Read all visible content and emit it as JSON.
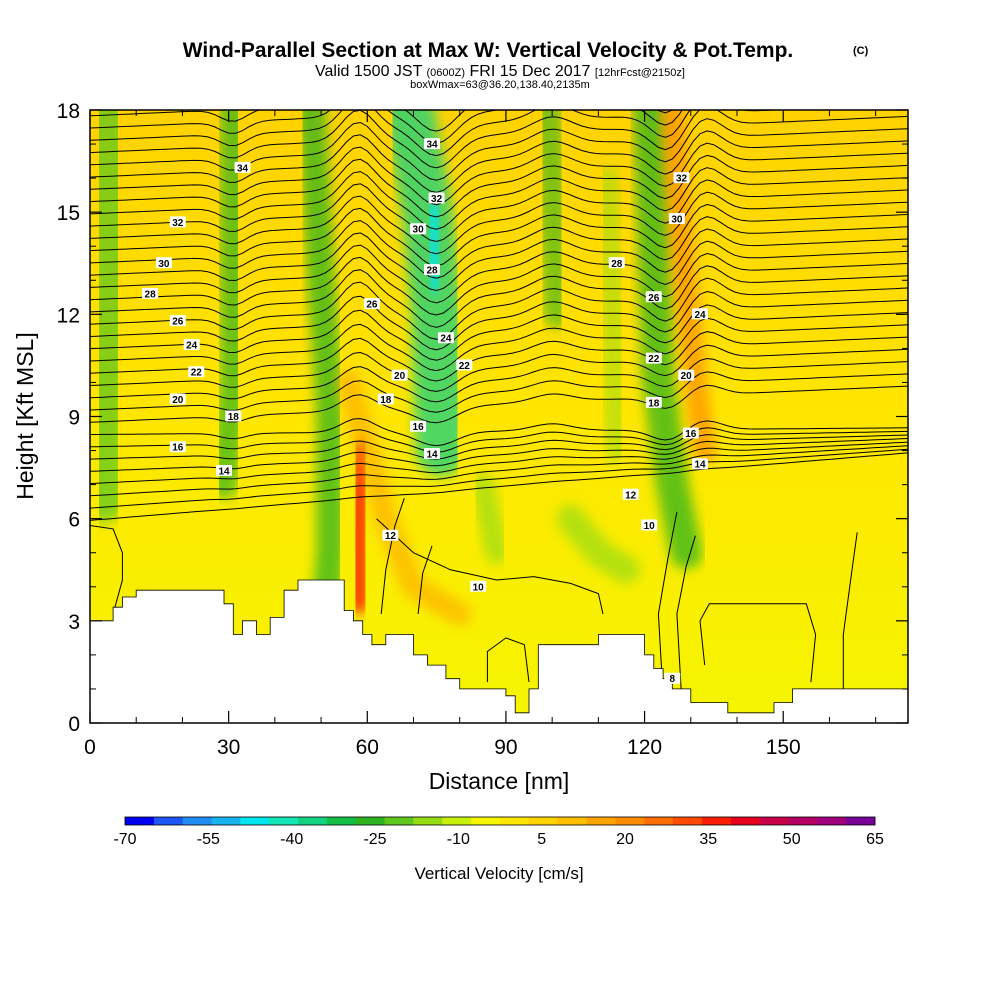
{
  "title": {
    "main": "Wind-Parallel Section at Max W: Vertical Velocity & Pot.Temp.",
    "copyright": "(C)",
    "valid_prefix": "Valid 1500 JST",
    "valid_utc": "(0600Z)",
    "valid_date": "FRI 15 Dec 2017",
    "forecast": "[12hrFcst@2150z]",
    "box_info": "boxWmax=63@36.20,138.40,2135m"
  },
  "chart_data": {
    "type": "heatmap",
    "xlabel": "Distance [nm]",
    "ylabel": "Height [Kft MSL]",
    "xlim": [
      0,
      177
    ],
    "ylim": [
      0,
      18
    ],
    "x_ticks": [
      0,
      30,
      60,
      90,
      120,
      150
    ],
    "y_ticks": [
      0,
      3,
      6,
      9,
      12,
      15,
      18
    ],
    "colorbar": {
      "title": "Vertical Velocity [cm/s]",
      "tick_labels": [
        "-70",
        "-55",
        "-40",
        "-25",
        "-10",
        "5",
        "20",
        "35",
        "50",
        "65"
      ],
      "range": [
        -70,
        65
      ],
      "colors": [
        "#0000f0",
        "#1e55f5",
        "#1e8cf0",
        "#17b4f0",
        "#00e6f0",
        "#13e6b4",
        "#13d282",
        "#13be46",
        "#2db41e",
        "#5fc81e",
        "#96dc14",
        "#c8f00a",
        "#f5f500",
        "#ffe600",
        "#ffd200",
        "#ffbe00",
        "#ffa500",
        "#ff8c00",
        "#ff6e00",
        "#ff4b00",
        "#fa1e00",
        "#e6001e",
        "#c80046",
        "#b40064",
        "#a0007d",
        "#780096"
      ]
    },
    "theta_contour_labels": [
      {
        "x": 33,
        "y": 16.3,
        "label": "34"
      },
      {
        "x": 74,
        "y": 17.0,
        "label": "34"
      },
      {
        "x": 128,
        "y": 16.0,
        "label": "32"
      },
      {
        "x": 19,
        "y": 14.7,
        "label": "32"
      },
      {
        "x": 75,
        "y": 15.4,
        "label": "32"
      },
      {
        "x": 127,
        "y": 14.8,
        "label": "30"
      },
      {
        "x": 16,
        "y": 13.5,
        "label": "30"
      },
      {
        "x": 71,
        "y": 14.5,
        "label": "30"
      },
      {
        "x": 13,
        "y": 12.6,
        "label": "28"
      },
      {
        "x": 74,
        "y": 13.3,
        "label": "28"
      },
      {
        "x": 114,
        "y": 13.5,
        "label": "28"
      },
      {
        "x": 19,
        "y": 11.8,
        "label": "26"
      },
      {
        "x": 61,
        "y": 12.3,
        "label": "26"
      },
      {
        "x": 122,
        "y": 12.5,
        "label": "26"
      },
      {
        "x": 22,
        "y": 11.1,
        "label": "24"
      },
      {
        "x": 77,
        "y": 11.3,
        "label": "24"
      },
      {
        "x": 132,
        "y": 12.0,
        "label": "24"
      },
      {
        "x": 23,
        "y": 10.3,
        "label": "22"
      },
      {
        "x": 81,
        "y": 10.5,
        "label": "22"
      },
      {
        "x": 122,
        "y": 10.7,
        "label": "22"
      },
      {
        "x": 19,
        "y": 9.5,
        "label": "20"
      },
      {
        "x": 67,
        "y": 10.2,
        "label": "20"
      },
      {
        "x": 129,
        "y": 10.2,
        "label": "20"
      },
      {
        "x": 31,
        "y": 9.0,
        "label": "18"
      },
      {
        "x": 64,
        "y": 9.5,
        "label": "18"
      },
      {
        "x": 122,
        "y": 9.4,
        "label": "18"
      },
      {
        "x": 19,
        "y": 8.1,
        "label": "16"
      },
      {
        "x": 71,
        "y": 8.7,
        "label": "16"
      },
      {
        "x": 130,
        "y": 8.5,
        "label": "16"
      },
      {
        "x": 29,
        "y": 7.4,
        "label": "14"
      },
      {
        "x": 74,
        "y": 7.9,
        "label": "14"
      },
      {
        "x": 132,
        "y": 7.6,
        "label": "14"
      },
      {
        "x": 117,
        "y": 6.7,
        "label": "12"
      },
      {
        "x": 65,
        "y": 5.5,
        "label": "12"
      },
      {
        "x": 121,
        "y": 5.8,
        "label": "10"
      },
      {
        "x": 84,
        "y": 4.0,
        "label": "10"
      },
      {
        "x": 126,
        "y": 1.3,
        "label": "8"
      }
    ]
  }
}
